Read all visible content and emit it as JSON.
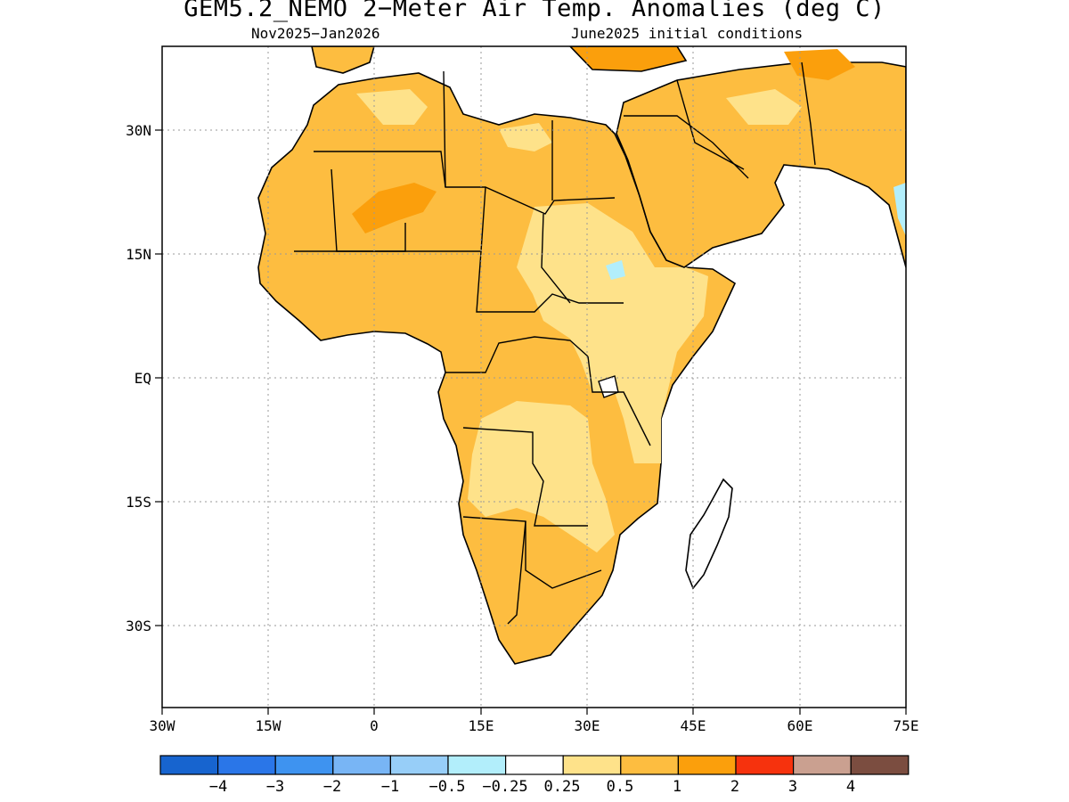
{
  "title": "GEM5.2_NEMO 2−Meter Air Temp. Anomalies (deg C)",
  "subtitle_left": "Nov2025−Jan2026",
  "subtitle_right": "June2025 initial conditions",
  "map": {
    "lon_range": [
      -30,
      75
    ],
    "lat_range": [
      -40,
      40
    ],
    "x_ticks": [
      "30W",
      "15W",
      "0",
      "15E",
      "30E",
      "45E",
      "60E",
      "75E"
    ],
    "y_ticks": [
      "30N",
      "15N",
      "EQ",
      "15S",
      "30S"
    ],
    "grid": "dotted"
  },
  "colorbar": {
    "colors": [
      "#1764cf",
      "#2a76e8",
      "#3e93f0",
      "#78b5f5",
      "#97cef8",
      "#b2eefb",
      "#ffffff",
      "#fee28a",
      "#fdbd40",
      "#fb9f0c",
      "#f6320d",
      "#caa090",
      "#7b4d40"
    ],
    "labels": [
      "−4",
      "−3",
      "−2",
      "−1",
      "−0.5",
      "−0.25",
      "0.25",
      "0.5",
      "1",
      "2",
      "3",
      "4"
    ]
  },
  "anomaly_colors": {
    "weak": "#fee28a",
    "moderate": "#fdbd40",
    "strong": "#fb9f0c",
    "cool": "#b2eefb"
  }
}
